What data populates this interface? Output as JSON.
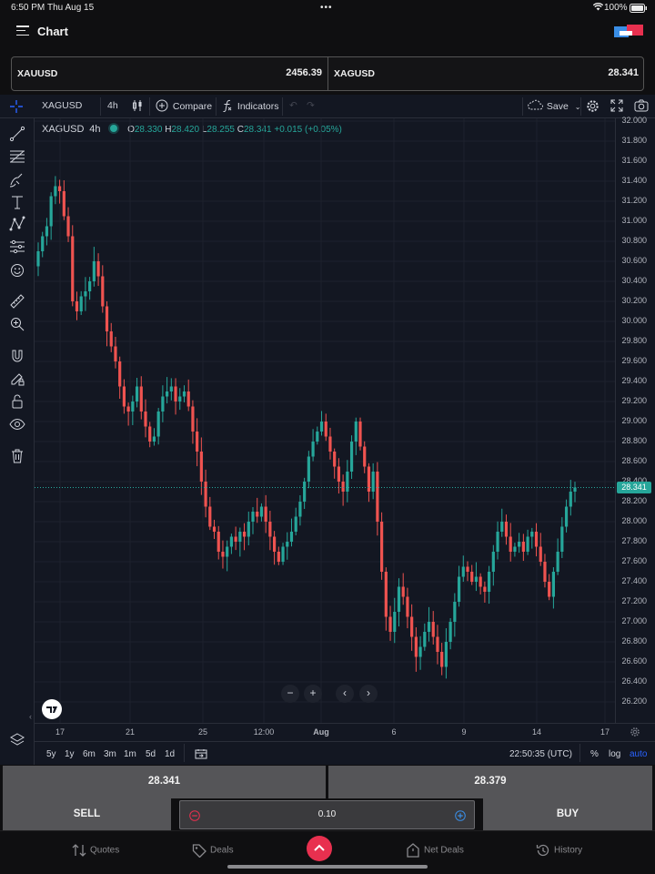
{
  "status_bar": {
    "time": "6:50 PM",
    "date": "Thu Aug 15",
    "battery": "100%"
  },
  "header": {
    "title": "Chart"
  },
  "symbols": [
    {
      "name": "XAUUSD",
      "price": "2456.39"
    },
    {
      "name": "XAGUSD",
      "price": "28.341"
    }
  ],
  "toolbar": {
    "symbol": "XAGUSD",
    "interval": "4h",
    "compare_label": "Compare",
    "indicators_label": "Indicators",
    "save_label": "Save"
  },
  "legend": {
    "symbol": "XAGUSD",
    "interval": "4h",
    "open_label": "O",
    "open": "28.330",
    "high_label": "H",
    "high": "28.420",
    "low_label": "L",
    "low": "28.255",
    "close_label": "C",
    "close": "28.341",
    "change": "+0.015 (+0.05%)"
  },
  "chart_data": {
    "type": "candlestick",
    "symbol": "XAGUSD",
    "interval": "4h",
    "current_price": 28.341,
    "price_axis_labels": [
      "32.000",
      "31.800",
      "31.600",
      "31.400",
      "31.200",
      "31.000",
      "30.800",
      "30.600",
      "30.400",
      "30.200",
      "30.000",
      "29.800",
      "29.600",
      "29.400",
      "29.200",
      "29.000",
      "28.800",
      "28.600",
      "28.400",
      "28.200",
      "28.000",
      "27.800",
      "27.600",
      "27.400",
      "27.200",
      "27.000",
      "26.800",
      "26.600",
      "26.400",
      "26.200"
    ],
    "time_axis_labels": [
      "17",
      "21",
      "25",
      "12:00",
      "Aug",
      "6",
      "9",
      "14",
      "17"
    ],
    "ylim": [
      26.0,
      32.05
    ],
    "close_series": [
      30.7,
      30.85,
      30.95,
      31.25,
      31.35,
      31.3,
      31.05,
      30.85,
      30.2,
      30.1,
      30.25,
      30.3,
      30.4,
      30.6,
      30.45,
      30.15,
      29.9,
      29.75,
      29.6,
      29.35,
      29.15,
      29.1,
      29.2,
      29.35,
      29.1,
      28.95,
      28.8,
      28.85,
      29.1,
      29.25,
      29.3,
      29.35,
      29.2,
      29.25,
      29.3,
      29.15,
      28.9,
      28.7,
      28.4,
      28.15,
      27.95,
      27.9,
      27.7,
      27.65,
      27.75,
      27.85,
      27.8,
      27.9,
      27.85,
      28.0,
      28.1,
      28.05,
      28.15,
      28.0,
      27.85,
      27.7,
      27.6,
      27.75,
      27.8,
      27.9,
      28.05,
      28.2,
      28.4,
      28.65,
      28.8,
      28.9,
      29.0,
      28.85,
      28.7,
      28.55,
      28.4,
      28.3,
      28.5,
      28.8,
      29.0,
      28.75,
      28.55,
      28.3,
      28.5,
      28.0,
      27.5,
      27.05,
      26.9,
      27.1,
      27.35,
      27.25,
      27.05,
      26.85,
      26.65,
      26.75,
      26.9,
      27.0,
      26.85,
      26.7,
      26.55,
      26.8,
      27.0,
      27.2,
      27.45,
      27.55,
      27.5,
      27.4,
      27.45,
      27.35,
      27.3,
      27.5,
      27.7,
      27.9,
      28.0,
      27.85,
      27.7,
      27.75,
      27.8,
      27.7,
      27.85,
      27.9,
      27.75,
      27.6,
      27.4,
      27.25,
      27.5,
      27.7,
      27.95,
      28.15,
      28.3,
      28.341
    ]
  },
  "nav_controls": {
    "zoom_out": "−",
    "zoom_in": "+",
    "scroll_left": "‹",
    "scroll_right": "›"
  },
  "range_bar": {
    "ranges": [
      "5y",
      "1y",
      "6m",
      "3m",
      "1m",
      "5d",
      "1d"
    ],
    "clock": "22:50:35 (UTC)",
    "percent": "%",
    "log": "log",
    "auto": "auto"
  },
  "trade": {
    "sell_price": "28.341",
    "buy_price": "28.379",
    "sell_label": "SELL",
    "buy_label": "BUY",
    "quantity": "0.10"
  },
  "tabs": [
    {
      "label": "Quotes"
    },
    {
      "label": "Deals"
    },
    {
      "label": "Net Deals"
    },
    {
      "label": "History"
    }
  ],
  "colors": {
    "up": "#26a69a",
    "down": "#ef5350",
    "accent": "#e8304f",
    "chart_bg": "#131722",
    "link": "#2962ff"
  }
}
